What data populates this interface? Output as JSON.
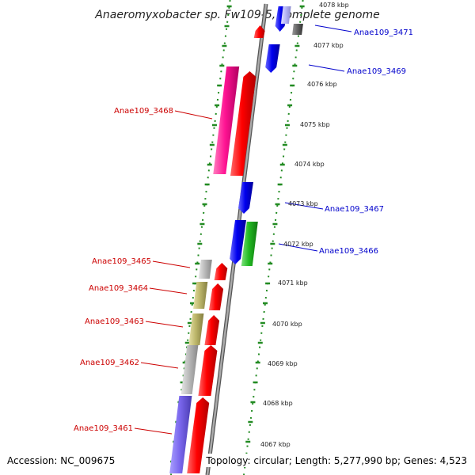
{
  "title": "Anaeromyxobacter sp. Fw109-5, complete genome",
  "accession": "Accession: NC_009675",
  "topology": "Topology: circular; Length: 5,277,990 bp; Genes: 4,523",
  "colors": {
    "backbone": "#8a8a8a",
    "forward_gene": "#ff0000",
    "reverse_gene": "#0000ee",
    "magenta_gene": "#ff1493",
    "green_gene": "#22bb22",
    "gray_gene": "#bbbbbb",
    "khaki_gene": "#bdb76b",
    "slate_gene": "#7b68ee",
    "dark_gray_gene": "#666666",
    "tick_color": "#228b22",
    "left_label_color": "#cc0000",
    "right_label_color": "#0000cc"
  },
  "kbp_labels": [
    "4078 kbp",
    "4077 kbp",
    "4076 kbp",
    "4075 kbp",
    "4074 kbp",
    "4073 kbp",
    "4072 kbp",
    "4071 kbp",
    "4070 kbp",
    "4069 kbp",
    "4068 kbp",
    "4067 kbp"
  ],
  "left_gene_labels": [
    "Anae109_3468",
    "Anae109_3465",
    "Anae109_3464",
    "Anae109_3463",
    "Anae109_3462",
    "Anae109_3461"
  ],
  "right_gene_labels": [
    "Anae109_3471",
    "Anae109_3469",
    "Anae109_3467",
    "Anae109_3466"
  ]
}
